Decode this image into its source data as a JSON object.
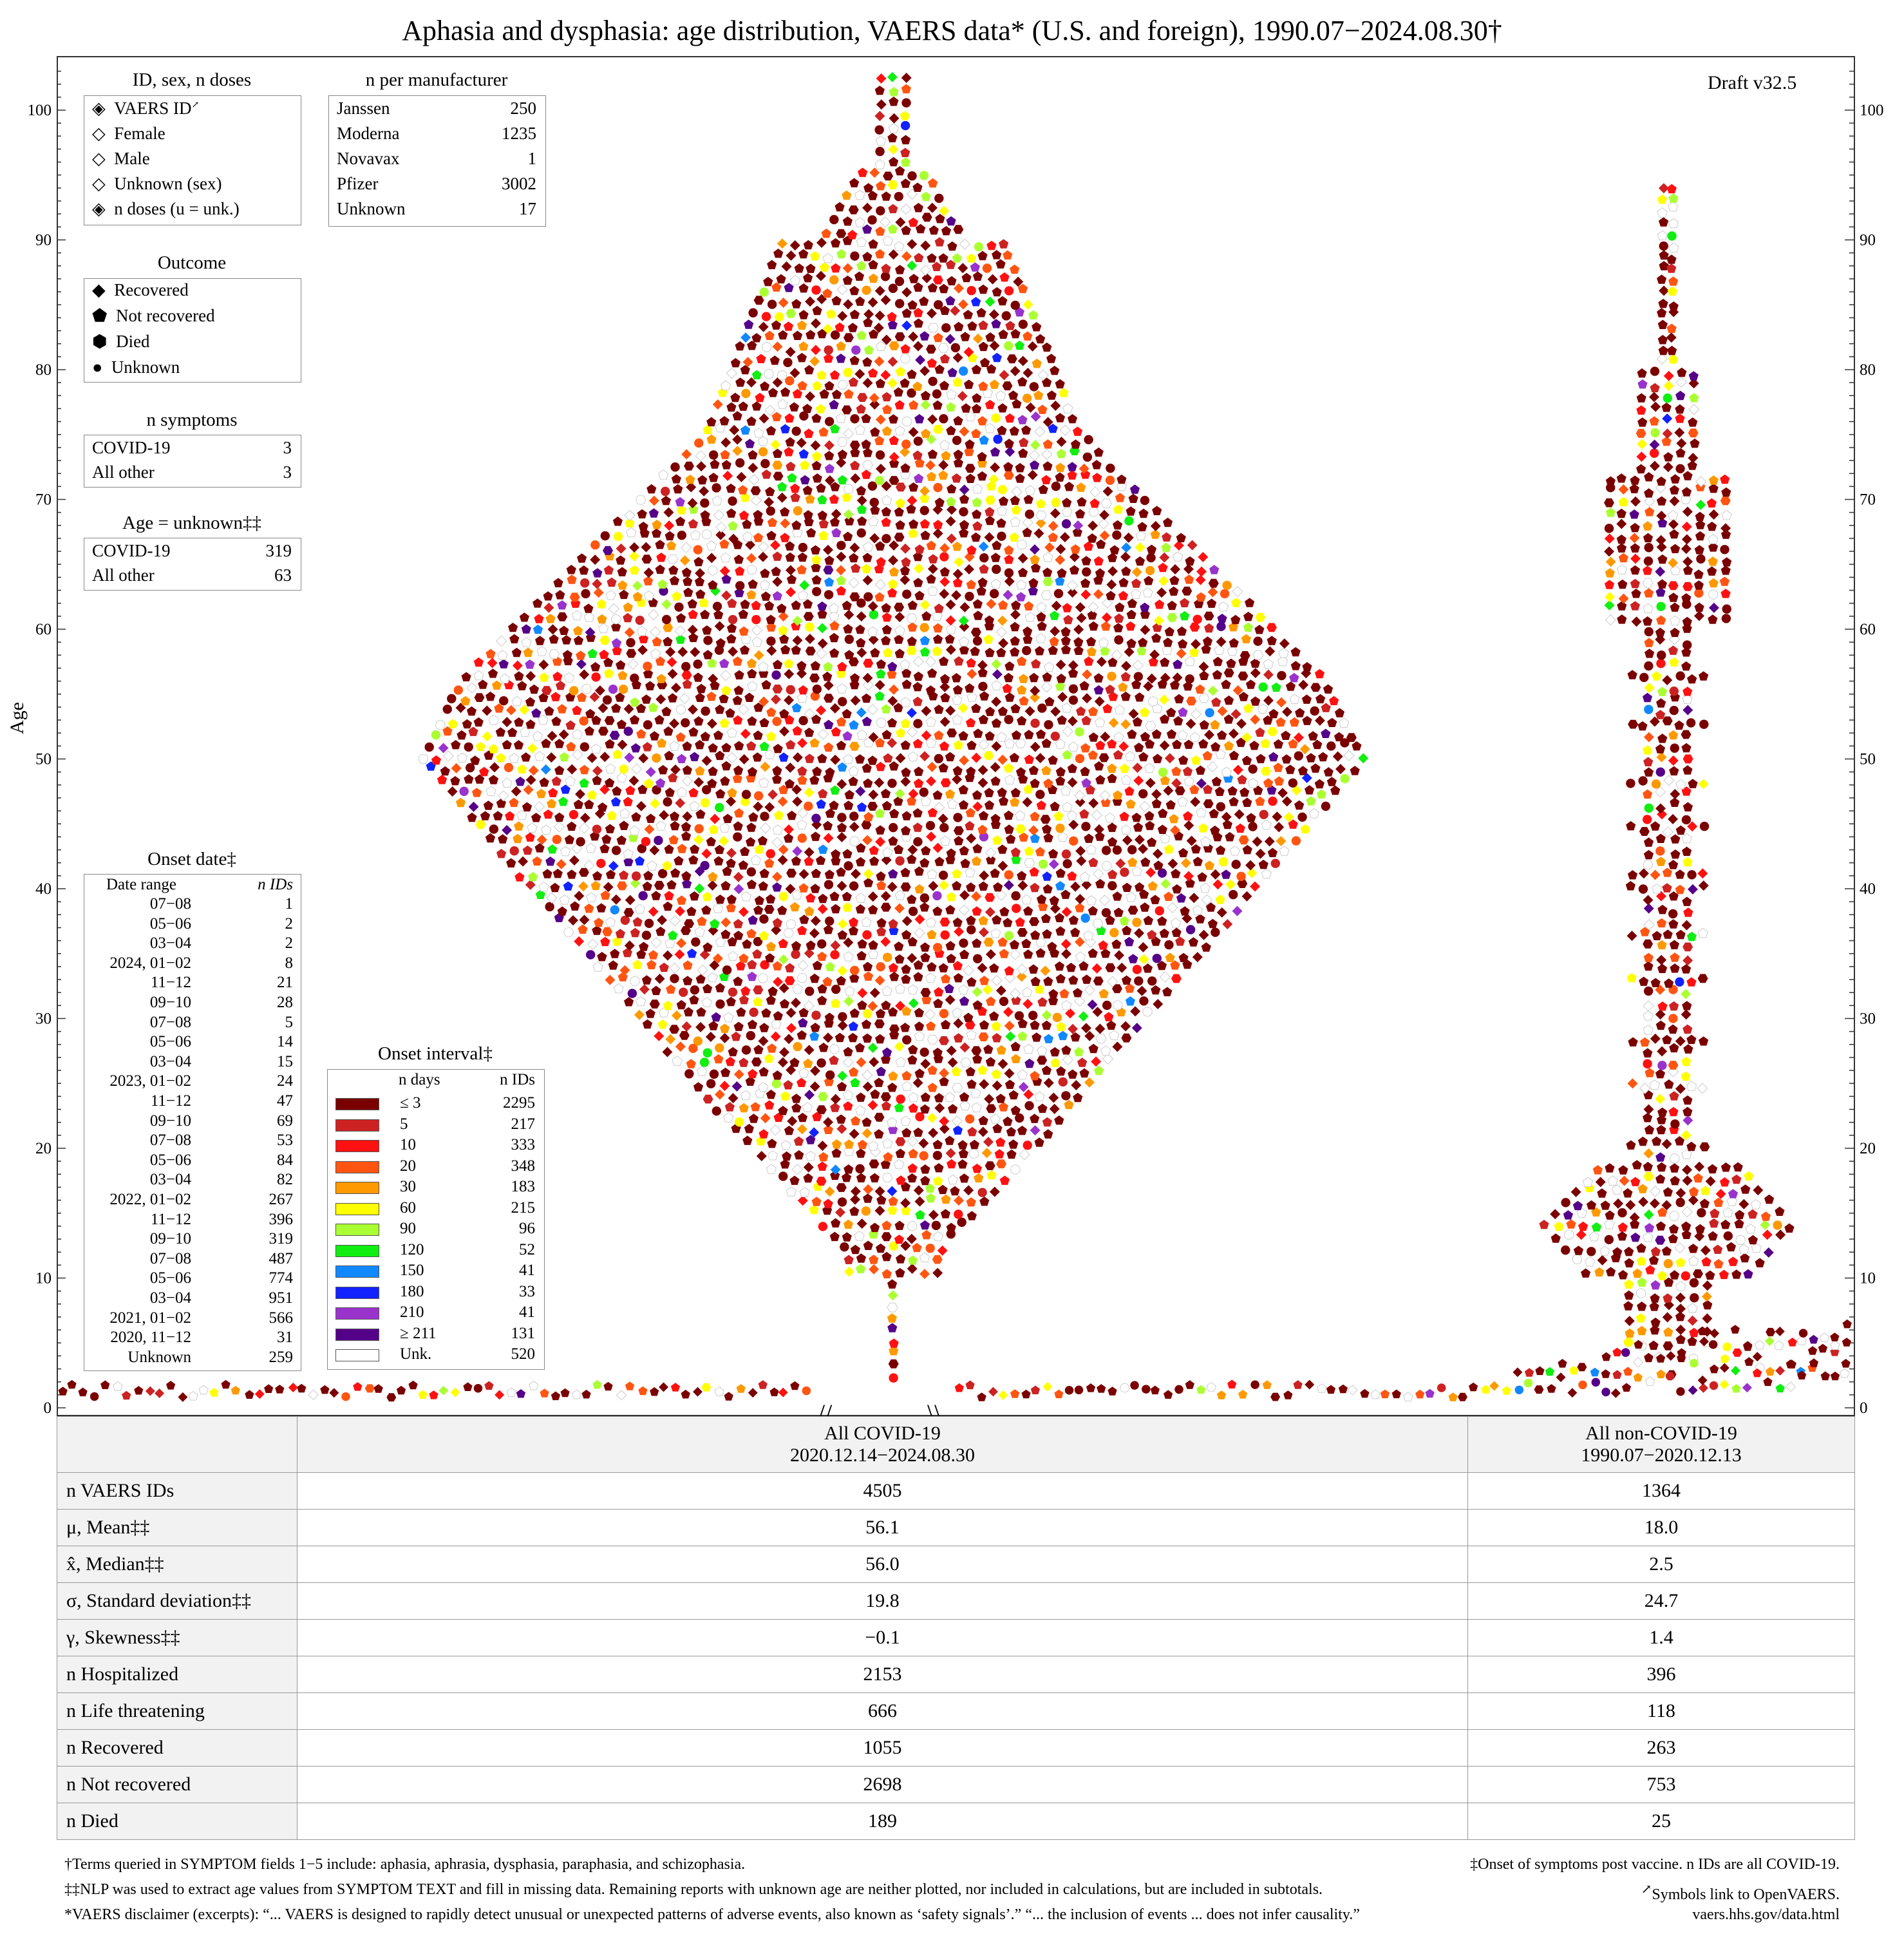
{
  "title": "Aphasia and dysphasia: age distribution, VAERS data* (U.S. and foreign), 1990.07−2024.08.30†",
  "draft": "Draft v32.5",
  "chart_data": {
    "type": "scatter",
    "subtype": "beeswarm",
    "ylabel": "Age",
    "ylim": [
      0,
      103
    ],
    "yticks": [
      0,
      10,
      20,
      30,
      40,
      50,
      60,
      70,
      80,
      90,
      100
    ],
    "groups": [
      "All COVID-19",
      "All non-COVID-19"
    ],
    "colors": {
      "c3": "#7a0000",
      "c5": "#cc2222",
      "c10": "#ff1111",
      "c20": "#ff5511",
      "c30": "#ff9900",
      "c60": "#ffff00",
      "c90": "#aaff33",
      "c120": "#11ee11",
      "c150": "#1188ff",
      "c180": "#1122ff",
      "c210": "#9933cc",
      "c211": "#550088",
      "cunk": "#ffffff"
    }
  },
  "legend_id": {
    "title": "ID, sex, n doses",
    "items": [
      "VAERS ID",
      "Female",
      "Male",
      "Unknown (sex)",
      "n doses (u = unk.)"
    ]
  },
  "legend_outcome": {
    "title": "Outcome",
    "items": [
      "Recovered",
      "Not recovered",
      "Died",
      "Unknown"
    ]
  },
  "legend_symptoms": {
    "title": "n symptoms",
    "rows": [
      {
        "label": "COVID-19",
        "value": "3"
      },
      {
        "label": "All other",
        "value": "3"
      }
    ]
  },
  "legend_age_unknown": {
    "title": "Age = unknown‡‡",
    "rows": [
      {
        "label": "COVID-19",
        "value": "319"
      },
      {
        "label": "All other",
        "value": "63"
      }
    ]
  },
  "legend_manufacturer": {
    "title": "n per manufacturer",
    "rows": [
      {
        "label": "Janssen",
        "value": "250"
      },
      {
        "label": "Moderna",
        "value": "1235"
      },
      {
        "label": "Novavax",
        "value": "1"
      },
      {
        "label": "Pfizer",
        "value": "3002"
      },
      {
        "label": "Unknown",
        "value": "17"
      }
    ]
  },
  "legend_onset_date": {
    "title": "Onset date‡",
    "col1": "Date range",
    "col2": "n IDs",
    "rows": [
      {
        "label": "07−08",
        "value": "1"
      },
      {
        "label": "05−06",
        "value": "2"
      },
      {
        "label": "03−04",
        "value": "2"
      },
      {
        "label": "2024, 01−02",
        "value": "8"
      },
      {
        "label": "11−12",
        "value": "21"
      },
      {
        "label": "09−10",
        "value": "28"
      },
      {
        "label": "07−08",
        "value": "5"
      },
      {
        "label": "05−06",
        "value": "14"
      },
      {
        "label": "03−04",
        "value": "15"
      },
      {
        "label": "2023, 01−02",
        "value": "24"
      },
      {
        "label": "11−12",
        "value": "47"
      },
      {
        "label": "09−10",
        "value": "69"
      },
      {
        "label": "07−08",
        "value": "53"
      },
      {
        "label": "05−06",
        "value": "84"
      },
      {
        "label": "03−04",
        "value": "82"
      },
      {
        "label": "2022, 01−02",
        "value": "267"
      },
      {
        "label": "11−12",
        "value": "396"
      },
      {
        "label": "09−10",
        "value": "319"
      },
      {
        "label": "07−08",
        "value": "487"
      },
      {
        "label": "05−06",
        "value": "774"
      },
      {
        "label": "03−04",
        "value": "951"
      },
      {
        "label": "2021, 01−02",
        "value": "566"
      },
      {
        "label": "2020, 11−12",
        "value": "31"
      },
      {
        "label": "Unknown",
        "value": "259"
      }
    ]
  },
  "legend_onset_interval": {
    "title": "Onset interval‡",
    "col1": "n days",
    "col2": "n IDs",
    "rows": [
      {
        "label": "≤ 3",
        "value": "2295",
        "color": "#7a0000"
      },
      {
        "label": "5",
        "value": "217",
        "color": "#cc2222"
      },
      {
        "label": "10",
        "value": "333",
        "color": "#ff1111"
      },
      {
        "label": "20",
        "value": "348",
        "color": "#ff5511"
      },
      {
        "label": "30",
        "value": "183",
        "color": "#ff9900"
      },
      {
        "label": "60",
        "value": "215",
        "color": "#ffff00"
      },
      {
        "label": "90",
        "value": "96",
        "color": "#aaff33"
      },
      {
        "label": "120",
        "value": "52",
        "color": "#11ee11"
      },
      {
        "label": "150",
        "value": "41",
        "color": "#1188ff"
      },
      {
        "label": "180",
        "value": "33",
        "color": "#1122ff"
      },
      {
        "label": "210",
        "value": "41",
        "color": "#9933cc"
      },
      {
        "label": "≥ 211",
        "value": "131",
        "color": "#550088"
      },
      {
        "label": "Unk.",
        "value": "520",
        "color": "#ffffff"
      }
    ]
  },
  "stats": {
    "col_covid": "All COVID-19",
    "col_covid_range": "2020.12.14−2024.08.30",
    "col_other": "All non-COVID-19",
    "col_other_range": "1990.07−2020.12.13",
    "rows": [
      {
        "label": "n VAERS IDs",
        "covid": "4505",
        "other": "1364"
      },
      {
        "label": "μ, Mean‡‡",
        "covid": "56.1",
        "other": "18.0"
      },
      {
        "label": "x̂, Median‡‡",
        "covid": "56.0",
        "other": "2.5"
      },
      {
        "label": "σ, Standard deviation‡‡",
        "covid": "19.8",
        "other": "24.7"
      },
      {
        "label": "γ, Skewness‡‡",
        "covid": "−0.1",
        "other": "1.4"
      },
      {
        "label": "n Hospitalized",
        "covid": "2153",
        "other": "396"
      },
      {
        "label": "n Life threatening",
        "covid": "666",
        "other": "118"
      },
      {
        "label": "n Recovered",
        "covid": "1055",
        "other": "263"
      },
      {
        "label": "n Not recovered",
        "covid": "2698",
        "other": "753"
      },
      {
        "label": "n Died",
        "covid": "189",
        "other": "25"
      }
    ]
  },
  "footnotes": {
    "dagger": "†Terms queried in SYMPTOM fields 1−5 include: aphasia, aphrasia, dysphasia, paraphasia, and schizophasia.",
    "ddagger_right": "‡Onset of symptoms post vaccine. n IDs are all COVID-19.",
    "dd": "‡‡NLP was used to extract age values from SYMPTOM TEXT and fill in missing data. Remaining reports with unknown age are neither plotted, nor included in calculations, but are included in subtotals.",
    "link_note": "Symbols link to OpenVAERS.",
    "disclaimer": "*VAERS disclaimer (excerpts): “... VAERS is designed to rapidly detect unusual or unexpected patterns of adverse events, also known as ‘safety signals’.” “... the inclusion of events ... does not infer causality.”",
    "url": "vaers.hhs.gov/data.html"
  }
}
